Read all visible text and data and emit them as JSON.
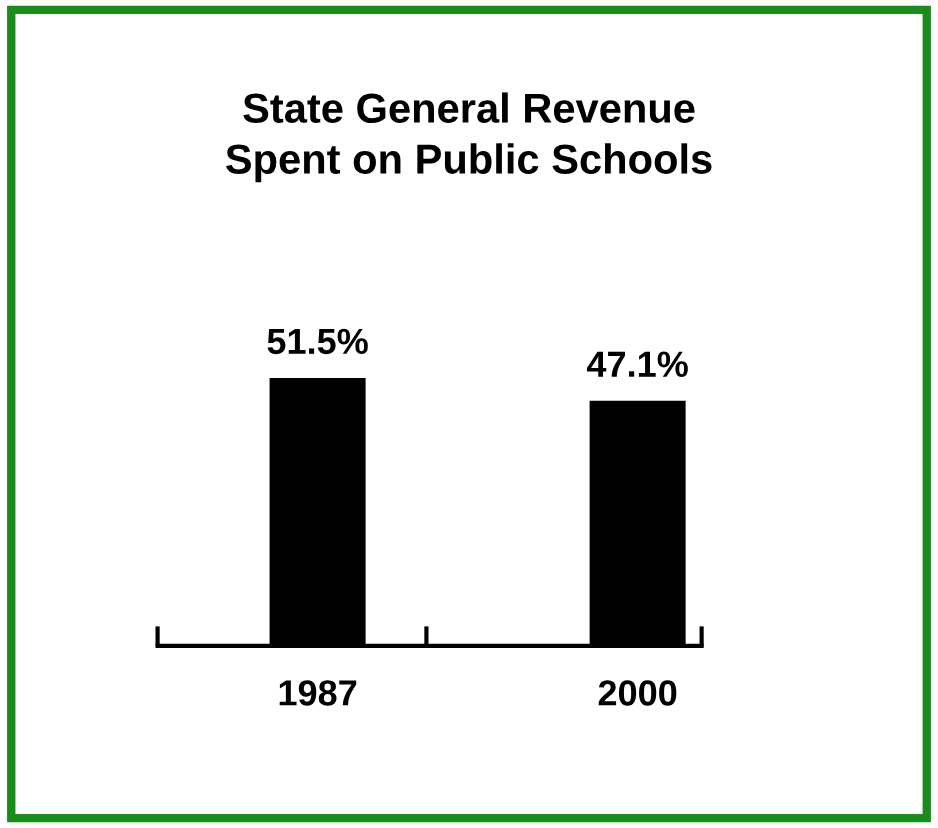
{
  "chart_data": {
    "type": "bar",
    "title": "State General Revenue\nSpent on Public Schools",
    "categories": [
      "1987",
      "2000"
    ],
    "values": [
      51.5,
      47.1
    ],
    "color": "#000000",
    "value_labels": [
      "51.5%",
      "47.1%"
    ],
    "grid": false,
    "legend": false
  }
}
